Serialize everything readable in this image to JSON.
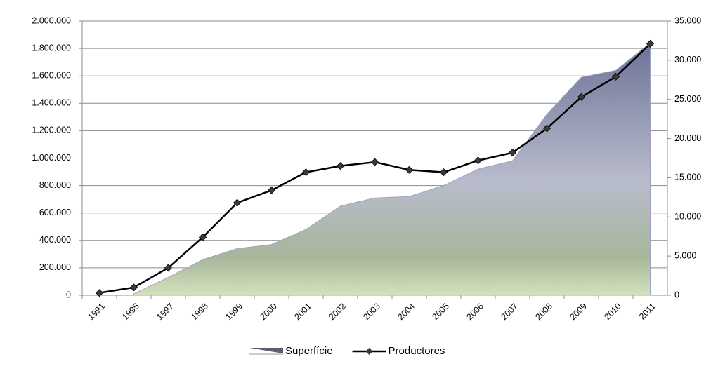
{
  "chart_data": {
    "type": "area_line",
    "categories": [
      "1991",
      "1995",
      "1997",
      "1998",
      "1999",
      "2000",
      "2001",
      "2002",
      "2003",
      "2004",
      "2005",
      "2006",
      "2007",
      "2008",
      "2009",
      "2010",
      "2011"
    ],
    "series": [
      {
        "name": "Superfície",
        "type": "area",
        "color": "#9da2c2",
        "axis": "y",
        "values": [
          null,
          10000,
          130000,
          260000,
          340000,
          370000,
          480000,
          650000,
          710000,
          720000,
          800000,
          920000,
          980000,
          1320000,
          1590000,
          1640000,
          1840000
        ]
      },
      {
        "name": "Productores",
        "type": "line",
        "color": "#000000",
        "axis": "y2",
        "values": [
          300,
          1000,
          3500,
          7400,
          11800,
          13400,
          15700,
          16500,
          17000,
          16000,
          15700,
          17200,
          18200,
          21300,
          25300,
          27900,
          32100
        ]
      }
    ],
    "ylim": [
      0,
      2000000
    ],
    "yticks": [
      0,
      {
        "value": 200000,
        "label": "200.000"
      },
      {
        "value": 400000,
        "label": "400.000"
      },
      {
        "value": 600000,
        "label": "600.000"
      },
      {
        "value": 800000,
        "label": "800.000"
      },
      {
        "value": 1000000,
        "label": "1.000.000"
      },
      {
        "value": 1200000,
        "label": "1.200.000"
      },
      {
        "value": 1400000,
        "label": "1.400.000"
      },
      {
        "value": 1600000,
        "label": "1.600.000"
      },
      {
        "value": 1800000,
        "label": "1.800.000"
      },
      {
        "value": 2000000,
        "label": "2.000.000"
      }
    ],
    "y2lim": [
      0,
      35000
    ],
    "y2ticks": [
      0,
      {
        "value": 5000,
        "label": "5.000"
      },
      {
        "value": 10000,
        "label": "10.000"
      },
      {
        "value": 15000,
        "label": "15.000"
      },
      {
        "value": 20000,
        "label": "20.000"
      },
      {
        "value": 25000,
        "label": "25.000"
      },
      {
        "value": 30000,
        "label": "30.000"
      },
      {
        "value": 35000,
        "label": "35.000"
      }
    ],
    "grid": true,
    "legend": "bottom"
  }
}
